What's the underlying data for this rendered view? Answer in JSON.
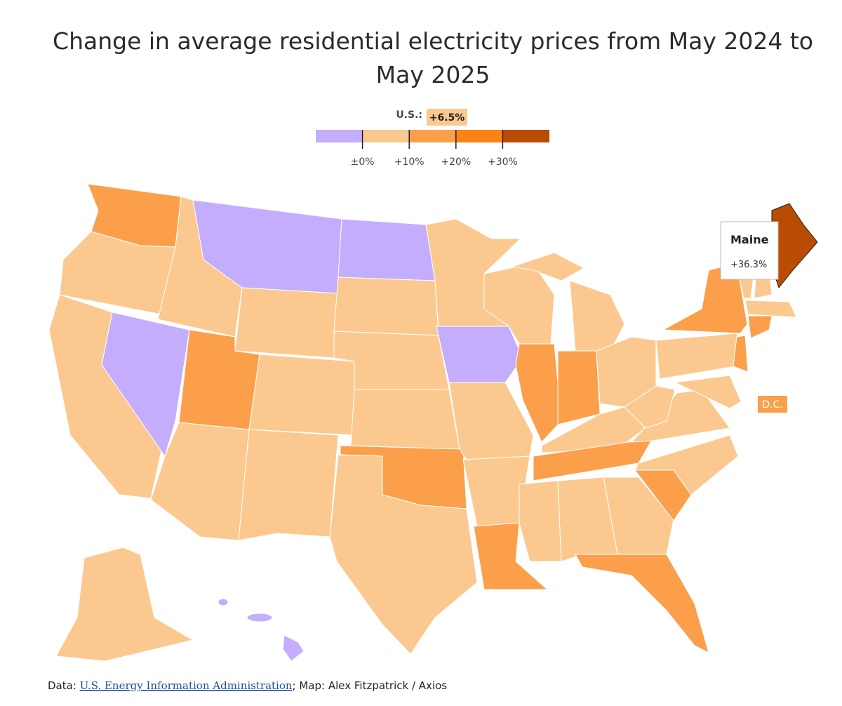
{
  "header": {
    "title_line1": "Change in average residential electricity prices from May 2024 to",
    "title_line2": "May 2025"
  },
  "legend": {
    "us_label": "U.S.:",
    "us_value": "+6.5%",
    "range": [
      -10,
      40
    ],
    "breaks": [
      {
        "value": 0,
        "label": "±0%"
      },
      {
        "value": 10,
        "label": "+10%"
      },
      {
        "value": 20,
        "label": "+20%"
      },
      {
        "value": 30,
        "label": "+30%"
      }
    ],
    "colors": [
      "#c4adfd",
      "#fbc98f",
      "#fb9f4b",
      "#fa8216",
      "#b94b02"
    ]
  },
  "tooltip": {
    "name": "Maine",
    "value": "+36.3%"
  },
  "dc_label": "D.C.",
  "footer": {
    "prefix": "Data:",
    "source": "U.S. Energy Information Administration",
    "credit": "; Map: Alex Fitzpatrick / Axios"
  }
}
